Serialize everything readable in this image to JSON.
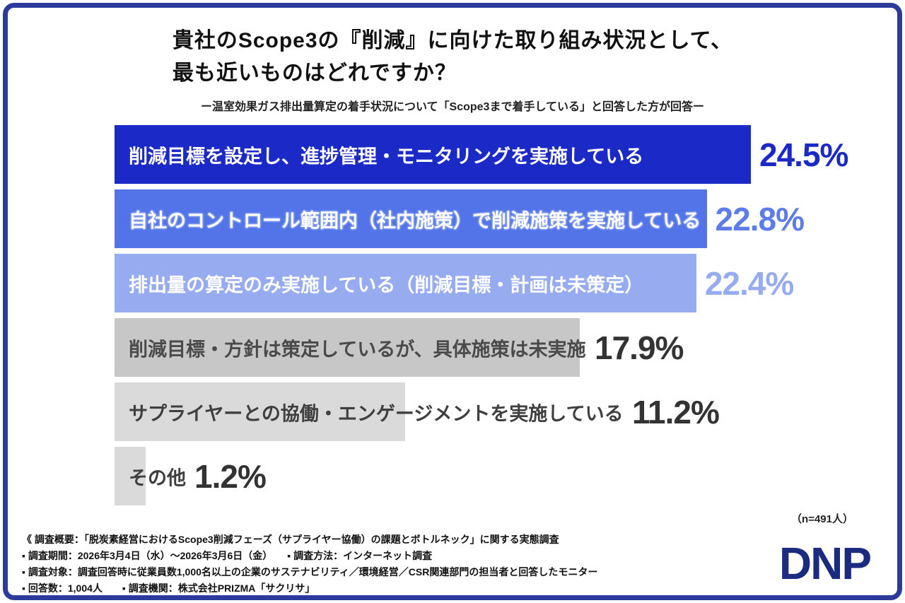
{
  "colors": {
    "border": "#2c3a9c",
    "logo": "#1c2a80"
  },
  "title": {
    "line1": "貴社のScope3の『削減』に向けた取り組み状況として、",
    "line2": "最も近いものはどれですか？"
  },
  "subtitle": "ー温室効果ガス排出量算定の着手状況について「Scope3まで着手している」と回答した方が回答ー",
  "chart_data": {
    "type": "bar",
    "orientation": "horizontal",
    "categories": [
      "削減目標を設定し、進捗管理・モニタリングを実施している",
      "自社のコントロール範囲内（社内施策）で削減施策を実施している",
      "排出量の算定のみ実施している（削減目標・計画は未策定）",
      "削減目標・方針は策定しているが、具体施策は未実施",
      "サプライヤーとの協働・エンゲージメントを実施している",
      "その他"
    ],
    "values": [
      24.5,
      22.8,
      22.4,
      17.9,
      11.2,
      1.2
    ],
    "value_labels": [
      "24.5%",
      "22.8%",
      "22.4%",
      "17.9%",
      "11.2%",
      "1.2%"
    ],
    "bar_colors": [
      "#1b2ac6",
      "#5274e8",
      "#96abf0",
      "#c7c7c7",
      "#dadada",
      "#dadada"
    ],
    "bar_text_colors": [
      "#ffffff",
      "#ffffff",
      "#ffffff",
      "#4a4a4a",
      "#3f3f3f",
      "#3f3f3f"
    ],
    "value_label_colors": [
      "#1b2ac6",
      "#5e7ce9",
      "#96abf0",
      "#333333",
      "#333333",
      "#333333"
    ],
    "xlim": [
      0,
      24.5
    ],
    "sample_note": "（n=491人）"
  },
  "footer": {
    "line1": "《 調査概要：「脱炭素経営におけるScope3削減フェーズ（サプライヤー協働）の課題とボトルネック」に関する実態調査",
    "line2": "▪ 調査期間：2026年3月4日（水）〜2026年3月6日（金）　　▪ 調査方法：インターネット調査",
    "line3": "▪ 調査対象：調査回答時に従業員数1,000名以上の企業のサステナビリティ／環境経営／CSR関連部門の担当者と回答したモニター",
    "line4": "▪ 回答数：1,004人　　▪ 調査機関：株式会社PRIZMA「サクリサ」"
  },
  "logo_text": "DNP"
}
